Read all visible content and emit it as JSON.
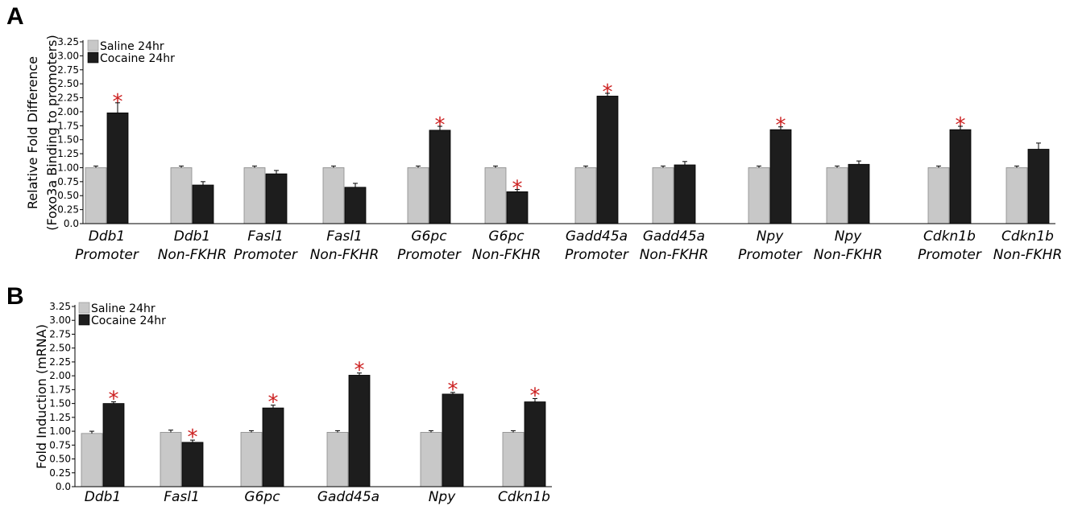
{
  "figure": {
    "panels": [
      "A",
      "B"
    ]
  },
  "chart_data": [
    {
      "type": "bar",
      "panel": "A",
      "ylabel_lines": [
        "Relative Fold Difference",
        "(Foxo3a Binding to promoters)"
      ],
      "ylim": [
        0,
        3.25
      ],
      "y_ticks": [
        "0.0",
        "0.25",
        "0.50",
        "0.75",
        "1.00",
        "1.25",
        "1.50",
        "1.75",
        "2.00",
        "2.25",
        "2.50",
        "2.75",
        "3.00",
        "3.25"
      ],
      "categories": [
        [
          "Ddb1",
          "Promoter"
        ],
        [
          "Ddb1",
          "Non-FKHR"
        ],
        [
          "Fasl1",
          "Promoter"
        ],
        [
          "Fasl1",
          "Non-FKHR"
        ],
        [
          "G6pc",
          "Promoter"
        ],
        [
          "G6pc",
          "Non-FKHR"
        ],
        [
          "Gadd45a",
          "Promoter"
        ],
        [
          "Gadd45a",
          "Non-FKHR"
        ],
        [
          "Npy",
          "Promoter"
        ],
        [
          "Npy",
          "Non-FKHR"
        ],
        [
          "Cdkn1b",
          "Promoter"
        ],
        [
          "Cdkn1b",
          "Non-FKHR"
        ]
      ],
      "series": [
        {
          "name": "Saline 24hr",
          "color": "#c8c8c8",
          "values": [
            1.0,
            1.0,
            1.0,
            1.0,
            1.0,
            1.0,
            1.0,
            1.0,
            1.0,
            1.0,
            1.0,
            1.0
          ],
          "errors": [
            0.03,
            0.03,
            0.03,
            0.03,
            0.03,
            0.03,
            0.03,
            0.03,
            0.03,
            0.03,
            0.03,
            0.03
          ]
        },
        {
          "name": "Cocaine 24hr",
          "color": "#1d1d1d",
          "values": [
            1.98,
            0.69,
            0.89,
            0.65,
            1.67,
            0.57,
            2.28,
            1.05,
            1.68,
            1.06,
            1.68,
            1.33
          ],
          "errors": [
            0.18,
            0.06,
            0.06,
            0.07,
            0.07,
            0.04,
            0.05,
            0.06,
            0.05,
            0.06,
            0.06,
            0.11
          ]
        }
      ],
      "significant": [
        true,
        false,
        false,
        false,
        true,
        true,
        true,
        false,
        true,
        false,
        true,
        false
      ],
      "significance_mark": "*",
      "legend_position": "top-left"
    },
    {
      "type": "bar",
      "panel": "B",
      "ylabel_lines": [
        "Fold Induction (mRNA)"
      ],
      "ylim": [
        0,
        3.25
      ],
      "y_ticks": [
        "0.0",
        "0.25",
        "0.50",
        "0.75",
        "1.00",
        "1.25",
        "1.50",
        "1.75",
        "2.00",
        "2.25",
        "2.50",
        "2.75",
        "3.00",
        "3.25"
      ],
      "categories": [
        [
          "Ddb1"
        ],
        [
          "Fasl1"
        ],
        [
          "G6pc"
        ],
        [
          "Gadd45a"
        ],
        [
          "Npy"
        ],
        [
          "Cdkn1b"
        ]
      ],
      "series": [
        {
          "name": "Saline 24hr",
          "color": "#c8c8c8",
          "values": [
            0.96,
            0.98,
            0.98,
            0.98,
            0.98,
            0.98
          ],
          "errors": [
            0.04,
            0.04,
            0.03,
            0.03,
            0.03,
            0.03
          ]
        },
        {
          "name": "Cocaine 24hr",
          "color": "#1d1d1d",
          "values": [
            1.5,
            0.8,
            1.42,
            2.01,
            1.67,
            1.53
          ],
          "errors": [
            0.03,
            0.04,
            0.05,
            0.04,
            0.03,
            0.06
          ]
        }
      ],
      "significant": [
        true,
        true,
        true,
        true,
        true,
        true
      ],
      "significance_mark": "*",
      "legend_position": "top-left"
    }
  ]
}
